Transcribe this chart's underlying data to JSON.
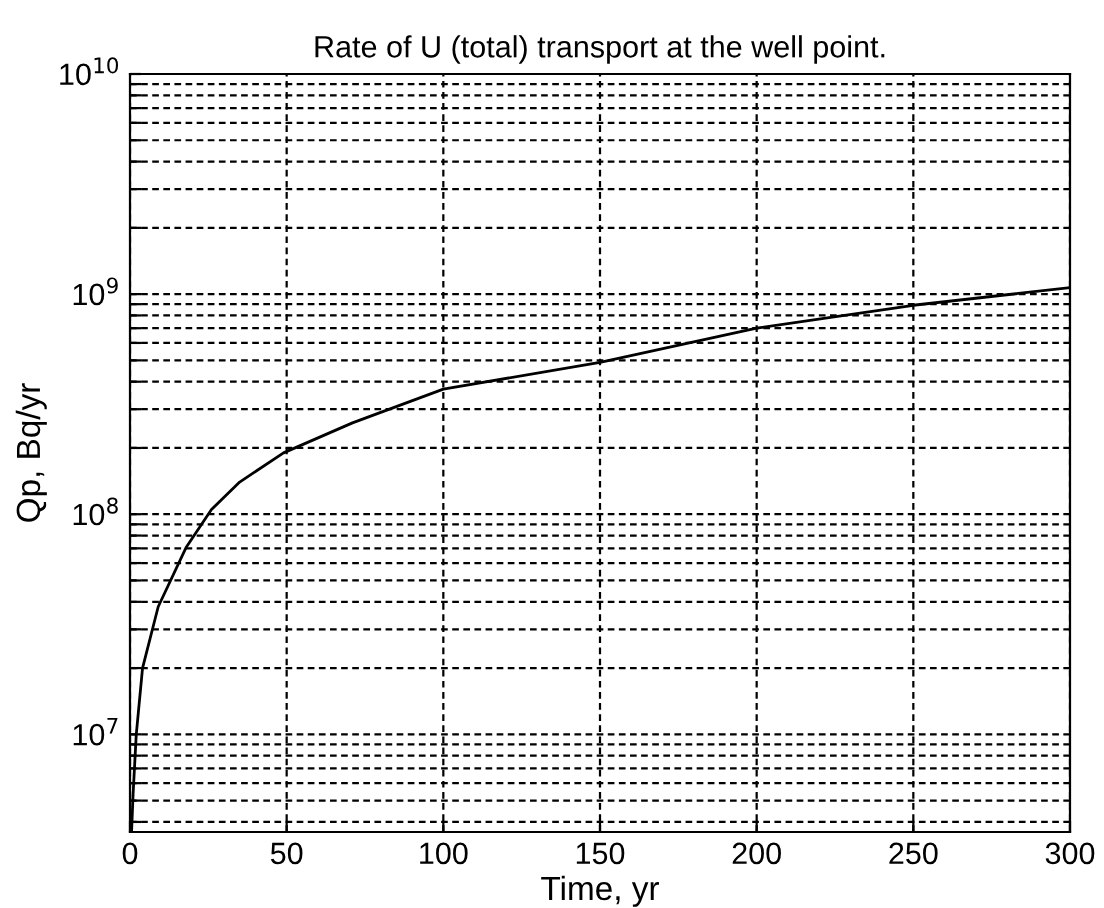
{
  "chart_data": {
    "type": "line",
    "title": "Rate of U (total) transport at the well point.",
    "xlabel": "Time, yr",
    "ylabel": "Qp, Bq/yr",
    "log": "y",
    "grid": true,
    "line_style": "solid",
    "marker": "none",
    "xlim": [
      0,
      300
    ],
    "xticks": [
      0,
      50,
      100,
      150,
      200,
      250,
      300
    ],
    "ylim": [
      3600000,
      10000000000
    ],
    "yticks": [
      {
        "value": 4000000,
        "label": null
      },
      {
        "value": 5000000,
        "label": null
      },
      {
        "value": 6000000,
        "label": null
      },
      {
        "value": 7000000,
        "label": null
      },
      {
        "value": 8000000,
        "label": null
      },
      {
        "value": 9000000,
        "label": null
      },
      {
        "value": 10000000,
        "label": "10$^{7}$"
      },
      {
        "value": 20000000,
        "label": null
      },
      {
        "value": 30000000,
        "label": null
      },
      {
        "value": 40000000,
        "label": null
      },
      {
        "value": 50000000,
        "label": null
      },
      {
        "value": 60000000,
        "label": null
      },
      {
        "value": 70000000,
        "label": null
      },
      {
        "value": 80000000,
        "label": null
      },
      {
        "value": 90000000,
        "label": null
      },
      {
        "value": 100000000,
        "label": "10$^{8}$"
      },
      {
        "value": 200000000,
        "label": null
      },
      {
        "value": 300000000,
        "label": null
      },
      {
        "value": 400000000,
        "label": null
      },
      {
        "value": 500000000,
        "label": null
      },
      {
        "value": 600000000,
        "label": null
      },
      {
        "value": 700000000,
        "label": null
      },
      {
        "value": 800000000,
        "label": null
      },
      {
        "value": 900000000,
        "label": null
      },
      {
        "value": 1000000000,
        "label": "10$^{9}$"
      },
      {
        "value": 2000000000,
        "label": null
      },
      {
        "value": 3000000000,
        "label": null
      },
      {
        "value": 4000000000,
        "label": null
      },
      {
        "value": 5000000000,
        "label": null
      },
      {
        "value": 6000000000,
        "label": null
      },
      {
        "value": 7000000000,
        "label": null
      },
      {
        "value": 8000000000,
        "label": null
      },
      {
        "value": 9000000000,
        "label": null
      },
      {
        "value": 10000000000,
        "label": "10$^{10}$"
      }
    ],
    "x": [
      0.5,
      1,
      2,
      4,
      9,
      18,
      26,
      35,
      49,
      71,
      100,
      150,
      200,
      250,
      300
    ],
    "series": [
      {
        "color": "#000000",
        "values": [
          3600000,
          5400000,
          10000000,
          20000000,
          38000000,
          71000000,
          105000000,
          140000000,
          190000000,
          260000000,
          370000000,
          490000000,
          700000000,
          890000000,
          1070000000
        ]
      }
    ]
  }
}
